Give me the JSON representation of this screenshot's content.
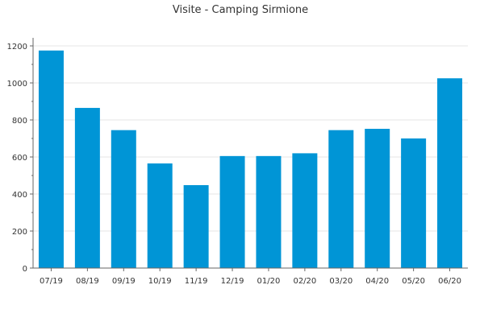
{
  "chart_data": {
    "type": "bar",
    "title": "Visite - Camping Sirmione",
    "categories": [
      "07/19",
      "08/19",
      "09/19",
      "10/19",
      "11/19",
      "12/19",
      "01/20",
      "02/20",
      "03/20",
      "04/20",
      "05/20",
      "06/20"
    ],
    "values": [
      1175,
      865,
      745,
      565,
      448,
      605,
      605,
      620,
      745,
      752,
      700,
      1025
    ],
    "ylim": [
      0,
      1200
    ],
    "yticks": [
      0,
      200,
      400,
      600,
      800,
      1000,
      1200
    ],
    "grid": true,
    "legend": "none",
    "bar_color": "#0095d6"
  }
}
